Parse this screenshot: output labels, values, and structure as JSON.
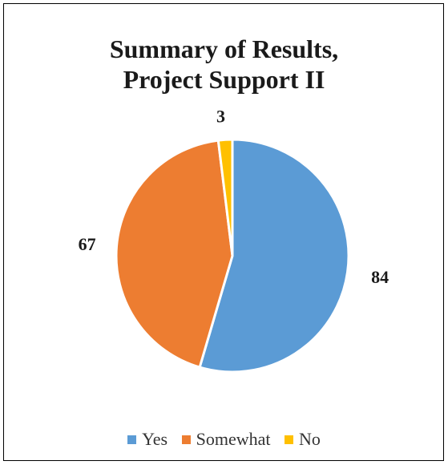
{
  "chart_data": {
    "type": "pie",
    "title": "Summary of Results,\nProject Support II",
    "categories": [
      "Yes",
      "Somewhat",
      "No"
    ],
    "values": [
      84,
      67,
      3
    ],
    "colors": [
      "#5b9bd5",
      "#ed7d31",
      "#ffc000"
    ],
    "data_labels": [
      "84",
      "67",
      "3"
    ],
    "legend_position": "bottom"
  }
}
